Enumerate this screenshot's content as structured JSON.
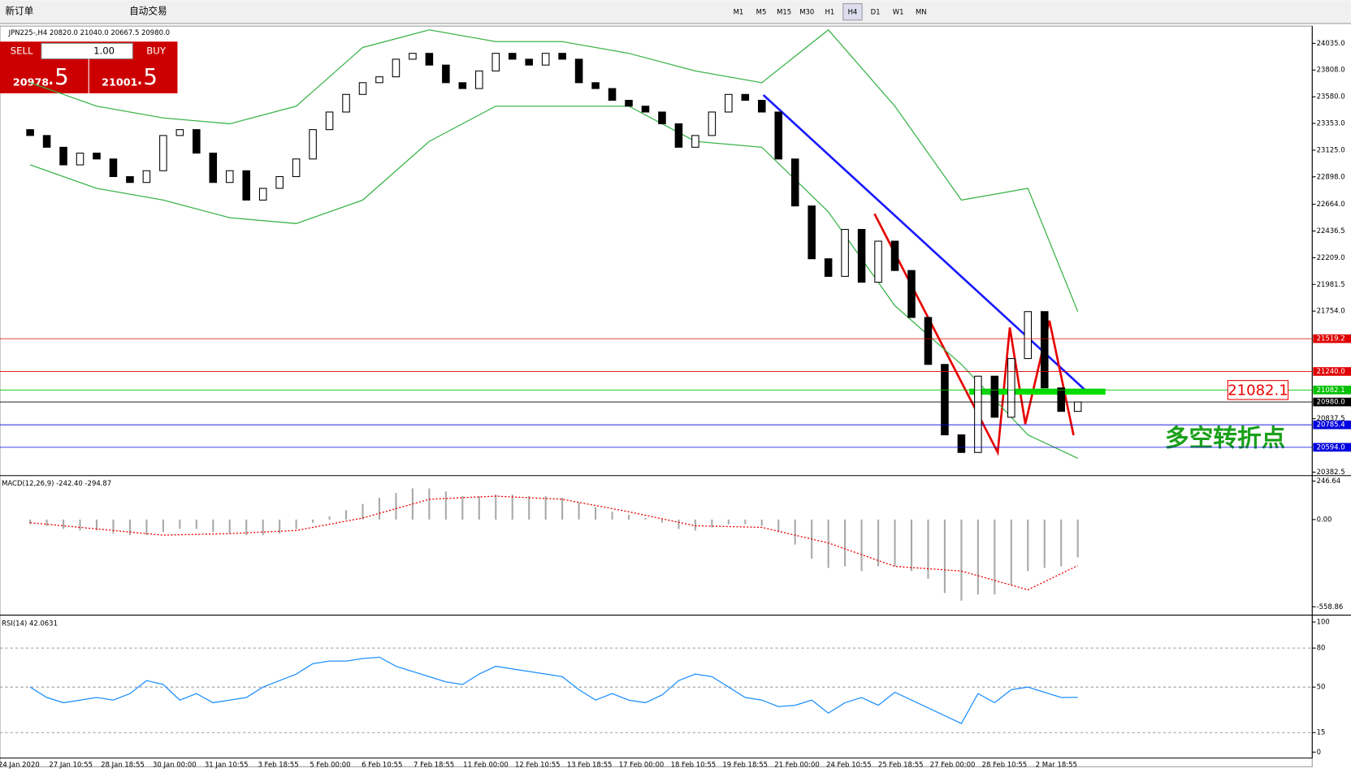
{
  "toolbar": {
    "new_order": "新订单",
    "auto_trading": "自动交易",
    "timeframes": [
      "M1",
      "M5",
      "M15",
      "M30",
      "H1",
      "H4",
      "D1",
      "W1",
      "MN"
    ],
    "active_timeframe": "H4"
  },
  "order_panel": {
    "sell": "SELL",
    "buy": "BUY",
    "lots": "1.00",
    "bid_main": "20978",
    "bid_frac": ".5",
    "ask_main": "21001",
    "ask_frac": ".5"
  },
  "annotation": "多空转折点",
  "chart_data": [
    {
      "type": "candlestick",
      "title": "JPN225-,H4  20820.0 21040.0 20667.5 20980.0",
      "ylim": [
        20360,
        24182
      ],
      "yticks": [
        {
          "value": 24035,
          "label": "24035.0"
        },
        {
          "value": 23808,
          "label": "23808.0"
        },
        {
          "value": 23580,
          "label": "23580.0"
        },
        {
          "value": 23353,
          "label": "23353.0"
        },
        {
          "value": 23125,
          "label": "23125.0"
        },
        {
          "value": 22898,
          "label": "22898.0"
        },
        {
          "value": 22664,
          "label": "22664.0"
        },
        {
          "value": 22436.5,
          "label": "22436.5"
        },
        {
          "value": 22209,
          "label": "22209.0"
        },
        {
          "value": 21981.5,
          "label": "21981.5"
        },
        {
          "value": 21754,
          "label": "21754.0"
        },
        {
          "value": 20837.5,
          "label": "20837.5"
        },
        {
          "value": 20382.5,
          "label": "20382.5"
        }
      ],
      "time_labels": [
        "24 Jan 2020",
        "27 Jan 10:55",
        "28 Jan 18:55",
        "30 Jan 00:00",
        "31 Jan 10:55",
        "3 Feb 18:55",
        "5 Feb 00:00",
        "6 Feb 10:55",
        "7 Feb 18:55",
        "11 Feb 00:00",
        "12 Feb 10:55",
        "13 Feb 18:55",
        "17 Feb 00:00",
        "18 Feb 10:55",
        "19 Feb 18:55",
        "21 Feb 00:00",
        "24 Feb 10:55",
        "25 Feb 18:55",
        "27 Feb 00:00",
        "28 Feb 10:55",
        "2 Mar 18:55"
      ],
      "open": [
        23300,
        23250,
        23150,
        23000,
        23100,
        23050,
        22900,
        22850,
        22950,
        23250,
        23300,
        23100,
        22850,
        22950,
        22700,
        22800,
        22900,
        23050,
        23300,
        23450,
        23600,
        23700,
        23750,
        23900,
        23950,
        23850,
        23700,
        23650,
        23800,
        23950,
        23900,
        23850,
        23950,
        23900,
        23700,
        23650,
        23550,
        23500,
        23450,
        23350,
        23150,
        23250,
        23450,
        23600,
        23550,
        23450,
        23050,
        22650,
        22200,
        22050,
        22450,
        22000,
        22350,
        22100,
        21700,
        21300,
        20700,
        20550,
        21200,
        20850,
        21350,
        21750,
        21100,
        20900
      ],
      "close": [
        23250,
        23150,
        23000,
        23100,
        23050,
        22900,
        22850,
        22950,
        23250,
        23300,
        23100,
        22850,
        22950,
        22700,
        22800,
        22900,
        23050,
        23300,
        23450,
        23600,
        23700,
        23750,
        23900,
        23950,
        23850,
        23700,
        23650,
        23800,
        23950,
        23900,
        23850,
        23950,
        23900,
        23700,
        23650,
        23550,
        23500,
        23450,
        23350,
        23150,
        23250,
        23450,
        23600,
        23550,
        23450,
        23050,
        22650,
        22200,
        22050,
        22450,
        22000,
        22350,
        22100,
        21700,
        21300,
        20700,
        20550,
        21200,
        20850,
        21350,
        21750,
        21100,
        20900,
        20980
      ],
      "bands": {
        "color": "#3cb44b",
        "x": [
          0,
          4,
          8,
          12,
          16,
          20,
          24,
          28,
          32,
          36,
          40,
          44,
          48,
          52,
          56,
          60,
          63
        ],
        "upper": [
          23700,
          23500,
          23400,
          23350,
          23500,
          24000,
          24150,
          24050,
          24050,
          23950,
          23800,
          23700,
          24150,
          23500,
          22700,
          22800,
          21750
        ],
        "lower": [
          23000,
          22800,
          22700,
          22550,
          22500,
          22700,
          23200,
          23500,
          23500,
          23500,
          23200,
          23150,
          22600,
          21800,
          21300,
          20700,
          20500
        ]
      },
      "levels": [
        {
          "value": 21519.2,
          "label": "21519.2",
          "color": "#e00000"
        },
        {
          "value": 21240,
          "label": "21240.0",
          "color": "#e00000"
        },
        {
          "value": 21082.1,
          "label": "21082.1",
          "color": "#00c000"
        },
        {
          "value": 20980,
          "label": "20980.0",
          "color": "#000000"
        },
        {
          "value": 20785.4,
          "label": "20785.4",
          "color": "#0000e0"
        },
        {
          "value": 20594,
          "label": "20594.0",
          "color": "#0000e0"
        }
      ]
    },
    {
      "type": "macd",
      "title": "MACD(12,26,9) -242.40 -294.87",
      "ylim": [
        -607,
        276
      ],
      "yticks": [
        {
          "value": 246.64,
          "label": "246.64"
        },
        {
          "value": 0,
          "label": "0.00"
        },
        {
          "value": -558.86,
          "label": "-558.86"
        }
      ],
      "histogram": [
        -30,
        -40,
        -60,
        -70,
        -70,
        -90,
        -100,
        -100,
        -80,
        -60,
        -60,
        -80,
        -90,
        -100,
        -100,
        -90,
        -60,
        -20,
        20,
        60,
        100,
        140,
        170,
        200,
        200,
        180,
        150,
        150,
        160,
        160,
        150,
        150,
        140,
        110,
        80,
        50,
        30,
        10,
        -20,
        -60,
        -70,
        -50,
        -30,
        -30,
        -40,
        -80,
        -160,
        -250,
        -310,
        -300,
        -330,
        -300,
        -300,
        -330,
        -380,
        -470,
        -520,
        -480,
        -480,
        -420,
        -330,
        -310,
        -300,
        -242.4
      ],
      "signal_x": [
        0,
        4,
        8,
        12,
        16,
        20,
        24,
        28,
        32,
        36,
        40,
        44,
        48,
        52,
        56,
        60,
        63
      ],
      "signal": [
        -20,
        -60,
        -100,
        -90,
        -70,
        10,
        130,
        150,
        130,
        50,
        -40,
        -50,
        -150,
        -300,
        -330,
        -450,
        -294.87
      ]
    },
    {
      "type": "line",
      "title": "RSI(14) 42.0631",
      "ylim": [
        -4.6,
        104
      ],
      "yticks": [
        100,
        80,
        50,
        15,
        0
      ],
      "color": "#1e90ff",
      "values": [
        50,
        42,
        38,
        40,
        42,
        40,
        45,
        55,
        52,
        40,
        45,
        38,
        40,
        42,
        50,
        55,
        60,
        68,
        70,
        70,
        72,
        73,
        66,
        62,
        58,
        54,
        52,
        60,
        66,
        64,
        62,
        60,
        58,
        48,
        40,
        45,
        40,
        38,
        44,
        55,
        60,
        58,
        50,
        42,
        40,
        35,
        36,
        40,
        30,
        38,
        42,
        36,
        46,
        40,
        34,
        28,
        22,
        45,
        38,
        48,
        50,
        46,
        42,
        42.0631
      ]
    }
  ]
}
